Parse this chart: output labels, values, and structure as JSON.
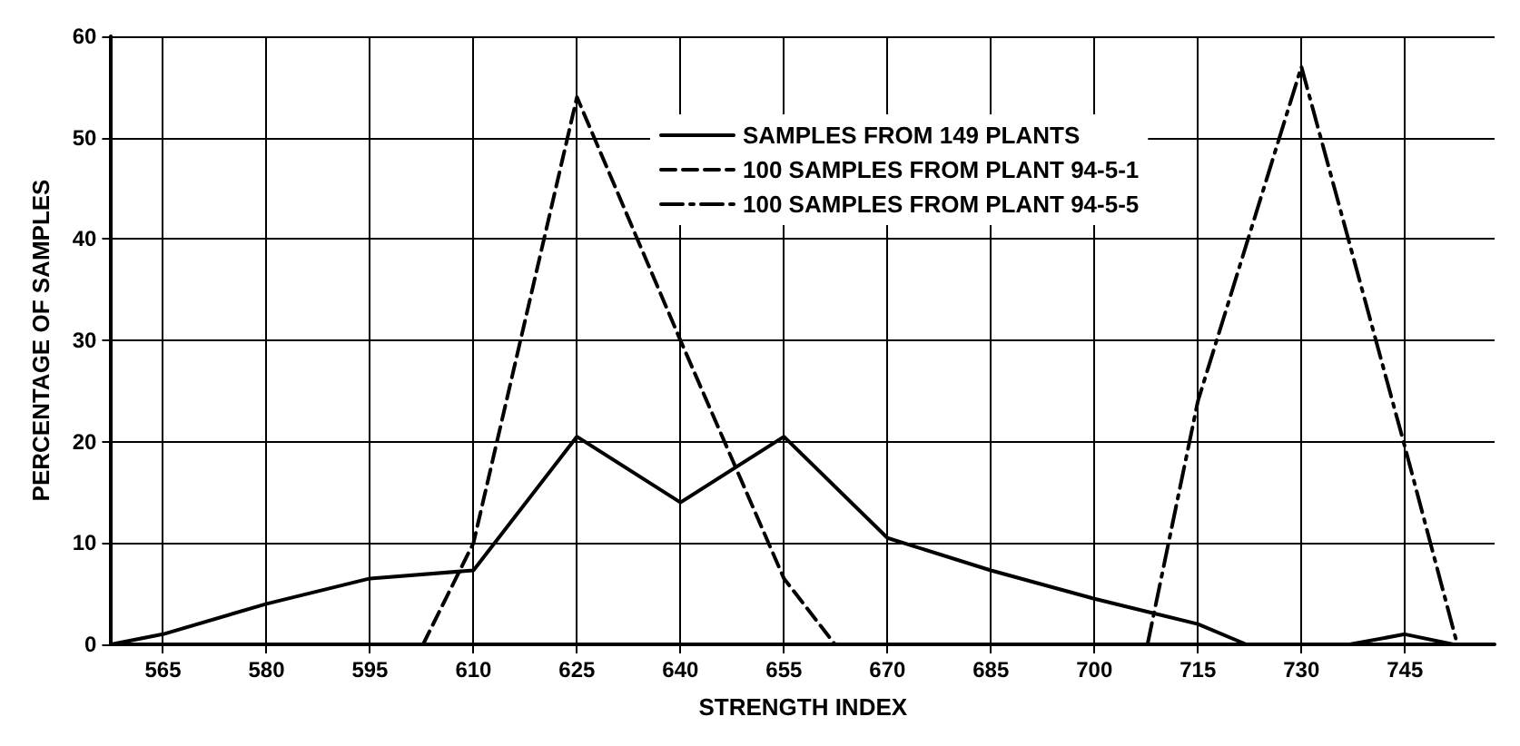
{
  "chart_data": {
    "type": "line",
    "xlabel": "STRENGTH INDEX",
    "ylabel": "PERCENTAGE OF SAMPLES",
    "xlim": [
      557.5,
      758
    ],
    "xticks": [
      565,
      580,
      595,
      610,
      625,
      640,
      655,
      670,
      685,
      700,
      715,
      730,
      745
    ],
    "ylim": [
      0,
      60
    ],
    "yticks": [
      0,
      10,
      20,
      30,
      40,
      50,
      60
    ],
    "grid": true,
    "legend": "top",
    "marker": "none",
    "series": [
      {
        "name": "SAMPLES FROM 149 PLANTS",
        "color": "#000000",
        "line_style": "solid",
        "x": [
          557.5,
          565,
          580,
          595,
          610,
          625,
          640,
          655,
          670,
          685,
          700,
          715,
          722,
          737,
          745,
          752
        ],
        "values": [
          0,
          1,
          4,
          6.5,
          7.3,
          20.5,
          14,
          20.5,
          10.5,
          7.3,
          4.5,
          2,
          0,
          0,
          1,
          0
        ]
      },
      {
        "name": "100 SAMPLES FROM PLANT 94-5-1",
        "color": "#000000",
        "line_style": "dashed",
        "x": [
          602.7,
          610,
          625,
          640,
          655,
          662.4
        ],
        "values": [
          0,
          10,
          54,
          30,
          6.5,
          0
        ]
      },
      {
        "name": "100 SAMPLES FROM PLANT 94-5-5",
        "color": "#000000",
        "line_style": "dashdot",
        "x": [
          707.7,
          715,
          730,
          745,
          752.6
        ],
        "values": [
          0,
          24,
          57,
          19.5,
          0
        ]
      }
    ]
  }
}
